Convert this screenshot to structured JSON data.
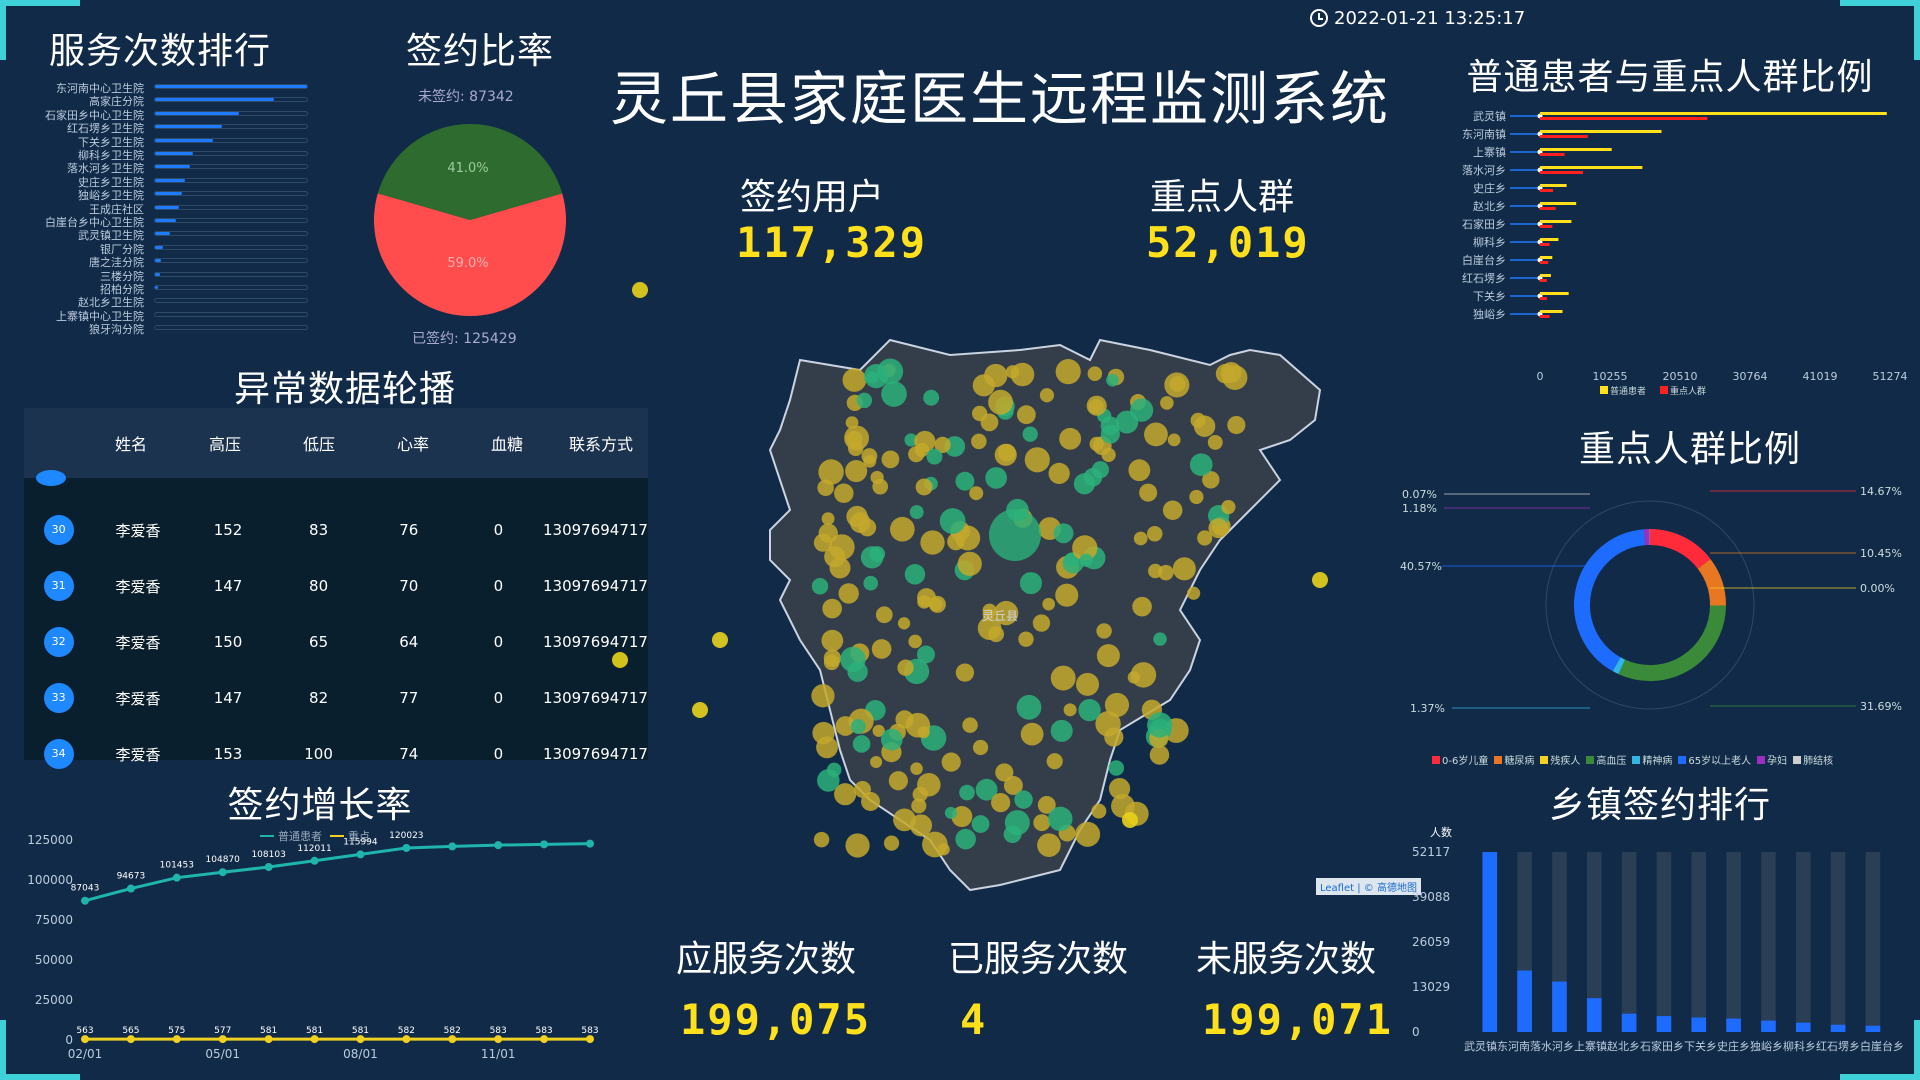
{
  "header": {
    "title": "灵丘县家庭医生远程监测系统",
    "datetime": "2022-01-21 13:25:17"
  },
  "colors": {
    "accent": "#3fd0d8",
    "yellow": "#ffe01a",
    "blue": "#1e7bff",
    "red": "#ff4d4d",
    "green": "#2e7d32"
  },
  "kpi": {
    "signed_users_label": "签约用户",
    "signed_users": "117,329",
    "key_group_label": "重点人群",
    "key_group": "52,019",
    "should_serve_label": "应服务次数",
    "should_serve": "199,075",
    "served_label": "已服务次数",
    "served": "4",
    "unserved_label": "未服务次数",
    "unserved": "199,071"
  },
  "service_rank": {
    "title": "服务次数排行",
    "items": [
      {
        "name": "东河南中心卫生院",
        "pct": 1.0
      },
      {
        "name": "高家庄分院",
        "pct": 0.78
      },
      {
        "name": "石家田乡中心卫生院",
        "pct": 0.55
      },
      {
        "name": "红石塄乡卫生院",
        "pct": 0.44
      },
      {
        "name": "下关乡卫生院",
        "pct": 0.38
      },
      {
        "name": "柳科乡卫生院",
        "pct": 0.25
      },
      {
        "name": "落水河乡卫生院",
        "pct": 0.23
      },
      {
        "name": "史庄乡卫生院",
        "pct": 0.2
      },
      {
        "name": "独峪乡卫生院",
        "pct": 0.18
      },
      {
        "name": "王成庄社区",
        "pct": 0.16
      },
      {
        "name": "白崖台乡中心卫生院",
        "pct": 0.14
      },
      {
        "name": "武灵镇卫生院",
        "pct": 0.1
      },
      {
        "name": "银厂分院",
        "pct": 0.05
      },
      {
        "name": "唐之洼分院",
        "pct": 0.04
      },
      {
        "name": "三楼分院",
        "pct": 0.03
      },
      {
        "name": "招柏分院",
        "pct": 0.02
      },
      {
        "name": "赵北乡卫生院",
        "pct": 0.0
      },
      {
        "name": "上寨镇中心卫生院",
        "pct": 0.0
      },
      {
        "name": "狼牙沟分院",
        "pct": 0.0
      }
    ]
  },
  "sign_ratio": {
    "title": "签约比率",
    "unsigned_label": "未签约: 87342",
    "signed_label": "已签约: 125429",
    "unsigned_pct": "41.0%",
    "signed_pct": "59.0%",
    "chart_data": {
      "type": "pie",
      "categories": [
        "未签约",
        "已签约"
      ],
      "values": [
        87342,
        125429
      ]
    }
  },
  "abnormal": {
    "title": "异常数据轮播",
    "headers": [
      "姓名",
      "高压",
      "低压",
      "心率",
      "血糖",
      "联系方式"
    ],
    "rows": [
      {
        "idx": "30",
        "name": "李爱香",
        "high": "152",
        "low": "83",
        "hr": "76",
        "bs": "0",
        "phone": "13097694717"
      },
      {
        "idx": "31",
        "name": "李爱香",
        "high": "147",
        "low": "80",
        "hr": "70",
        "bs": "0",
        "phone": "13097694717"
      },
      {
        "idx": "32",
        "name": "李爱香",
        "high": "150",
        "low": "65",
        "hr": "64",
        "bs": "0",
        "phone": "13097694717"
      },
      {
        "idx": "33",
        "name": "李爱香",
        "high": "147",
        "low": "82",
        "hr": "77",
        "bs": "0",
        "phone": "13097694717"
      },
      {
        "idx": "34",
        "name": "李爱香",
        "high": "153",
        "low": "100",
        "hr": "74",
        "bs": "0",
        "phone": "13097694717"
      }
    ]
  },
  "growth": {
    "title": "签约增长率",
    "legend": [
      "普通患者",
      "重点"
    ],
    "chart_data": {
      "type": "line",
      "x": [
        "02/01",
        "03/01",
        "04/01",
        "05/01",
        "06/01",
        "07/01",
        "08/01",
        "09/01",
        "10/01",
        "11/01",
        "12/01",
        "01/01"
      ],
      "x_ticks": [
        "02/01",
        "05/01",
        "08/01",
        "11/01"
      ],
      "ylim": [
        0,
        125000
      ],
      "y_ticks": [
        "0",
        "25000",
        "50000",
        "75000",
        "100000",
        "125000"
      ],
      "series": [
        {
          "name": "普通患者",
          "values": [
            87043,
            94673,
            101453,
            104870,
            108103,
            112011,
            115994,
            120023,
            121000,
            121800,
            122300,
            122700
          ],
          "labels": [
            "87043",
            "94673",
            "101453",
            "104870",
            "108103",
            "112011",
            "115994",
            "120023",
            "",
            "",
            "",
            ""
          ]
        },
        {
          "name": "重点",
          "values": [
            563,
            565,
            575,
            577,
            581,
            581,
            581,
            582,
            582,
            583,
            583,
            583
          ],
          "labels": [
            "563",
            "565",
            "575",
            "577",
            "581",
            "581",
            "581",
            "582",
            "582",
            "583",
            "583",
            "583"
          ]
        }
      ]
    }
  },
  "map": {
    "center_label": "灵丘县",
    "attribution": "Leaflet | © 高德地图"
  },
  "ratio_compare": {
    "title": "普通患者与重点人群比例",
    "legend": [
      "普通患者",
      "重点人群"
    ],
    "chart_data": {
      "type": "bar",
      "categories": [
        "武灵镇",
        "东河南镇",
        "上寨镇",
        "落水河乡",
        "史庄乡",
        "赵北乡",
        "石家田乡",
        "柳科乡",
        "白崖台乡",
        "红石塄乡",
        "下关乡",
        "独峪乡"
      ],
      "x_ticks": [
        "0",
        "10255",
        "20510",
        "30764",
        "41019",
        "51274"
      ],
      "xlim": [
        0,
        51274
      ],
      "series": [
        {
          "name": "普通患者",
          "values": [
            50800,
            17800,
            10500,
            15000,
            3900,
            5300,
            4600,
            2700,
            1800,
            1600,
            4200,
            3300
          ]
        },
        {
          "name": "重点人群",
          "values": [
            24500,
            7000,
            3600,
            6300,
            1900,
            2300,
            1800,
            1400,
            1200,
            1000,
            1000,
            1400
          ]
        }
      ]
    }
  },
  "key_ratio": {
    "title": "重点人群比例",
    "legend": [
      "0-6岁儿童",
      "糖尿病",
      "残疾人",
      "高血压",
      "精神病",
      "65岁以上老人",
      "孕妇",
      "肺结核"
    ],
    "labels": [
      "14.67%",
      "10.45%",
      "0.00%",
      "31.69%",
      "1.37%",
      "40.57%",
      "1.18%",
      "0.07%"
    ],
    "chart_data": {
      "type": "pie",
      "categories": [
        "0-6岁儿童",
        "糖尿病",
        "残疾人",
        "高血压",
        "精神病",
        "65岁以上老人",
        "孕妇",
        "肺结核"
      ],
      "values": [
        14.67,
        10.45,
        0.0,
        31.69,
        1.37,
        40.57,
        1.18,
        0.07
      ]
    }
  },
  "town_rank": {
    "title": "乡镇签约排行",
    "y_title": "人数",
    "y_ticks": [
      "0",
      "13029",
      "26059",
      "39088",
      "52117"
    ],
    "x_label": "武灵镇东河南落水河乡上寨镇赵北乡石家田乡下关乡史庄乡独峪乡柳科乡红石塄乡白崖台乡",
    "chart_data": {
      "type": "bar",
      "categories": [
        "武灵镇",
        "东河南镇",
        "落水河乡",
        "上寨镇",
        "赵北乡",
        "石家田乡",
        "下关乡",
        "史庄乡",
        "独峪乡",
        "柳科乡",
        "红石塄乡",
        "白崖台乡"
      ],
      "ylim": [
        0,
        52117
      ],
      "values": [
        52117,
        17800,
        14600,
        9800,
        5300,
        4600,
        4200,
        3900,
        3300,
        2700,
        2100,
        1800
      ]
    }
  }
}
